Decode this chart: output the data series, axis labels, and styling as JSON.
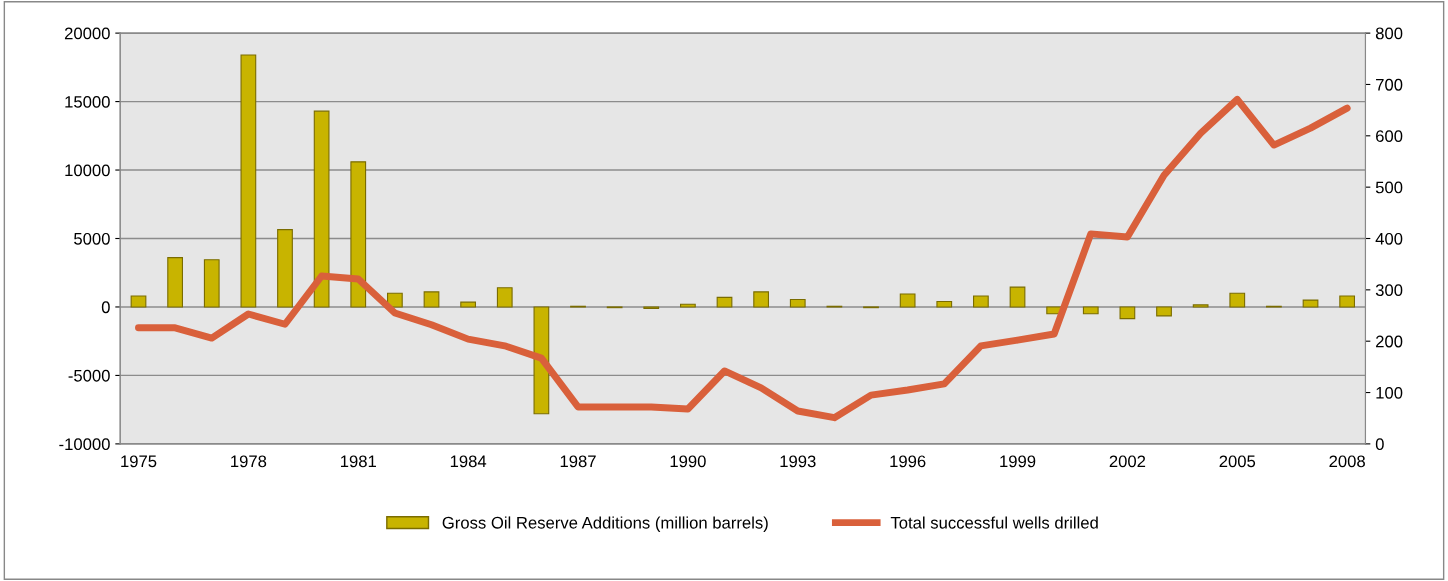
{
  "chart_data": {
    "type": "bar",
    "categories": [
      "1975",
      null,
      null,
      "1978",
      null,
      null,
      "1981",
      null,
      null,
      "1984",
      null,
      null,
      "1987",
      null,
      null,
      "1990",
      null,
      null,
      "1993",
      null,
      null,
      "1996",
      null,
      null,
      "1999",
      null,
      null,
      "2002",
      null,
      null,
      "2005",
      null,
      null,
      "2008"
    ],
    "series": [
      {
        "name": "Gross Oil Reserve Additions (million barrels)",
        "color": "#c8b400",
        "values": [
          800,
          3600,
          3450,
          18400,
          5650,
          14300,
          10600,
          1000,
          1100,
          350,
          1400,
          -7800,
          50,
          -50,
          -100,
          200,
          700,
          1100,
          550,
          50,
          -50,
          950,
          400,
          800,
          1450,
          -500,
          -500,
          -850,
          -650,
          150,
          1000,
          50,
          500,
          800
        ]
      },
      {
        "name": "Total successful wells drilled",
        "type": "line",
        "axis": "y2",
        "color": "#d9603b",
        "values": [
          226,
          226,
          206,
          253,
          233,
          327,
          321,
          255,
          232,
          204,
          191,
          167,
          72,
          72,
          72,
          68,
          142,
          109,
          64,
          51,
          95,
          105,
          117,
          191,
          202,
          214,
          409,
          403,
          523,
          605,
          671,
          582,
          615,
          654
        ]
      }
    ],
    "ylim": [
      -10000,
      20000
    ],
    "yticks": [
      -10000,
      -5000,
      0,
      5000,
      10000,
      15000,
      20000
    ],
    "y2lim": [
      0,
      800
    ],
    "y2ticks": [
      0,
      100,
      200,
      300,
      400,
      500,
      600,
      700,
      800
    ],
    "grid": "y",
    "legend": "bottom"
  }
}
